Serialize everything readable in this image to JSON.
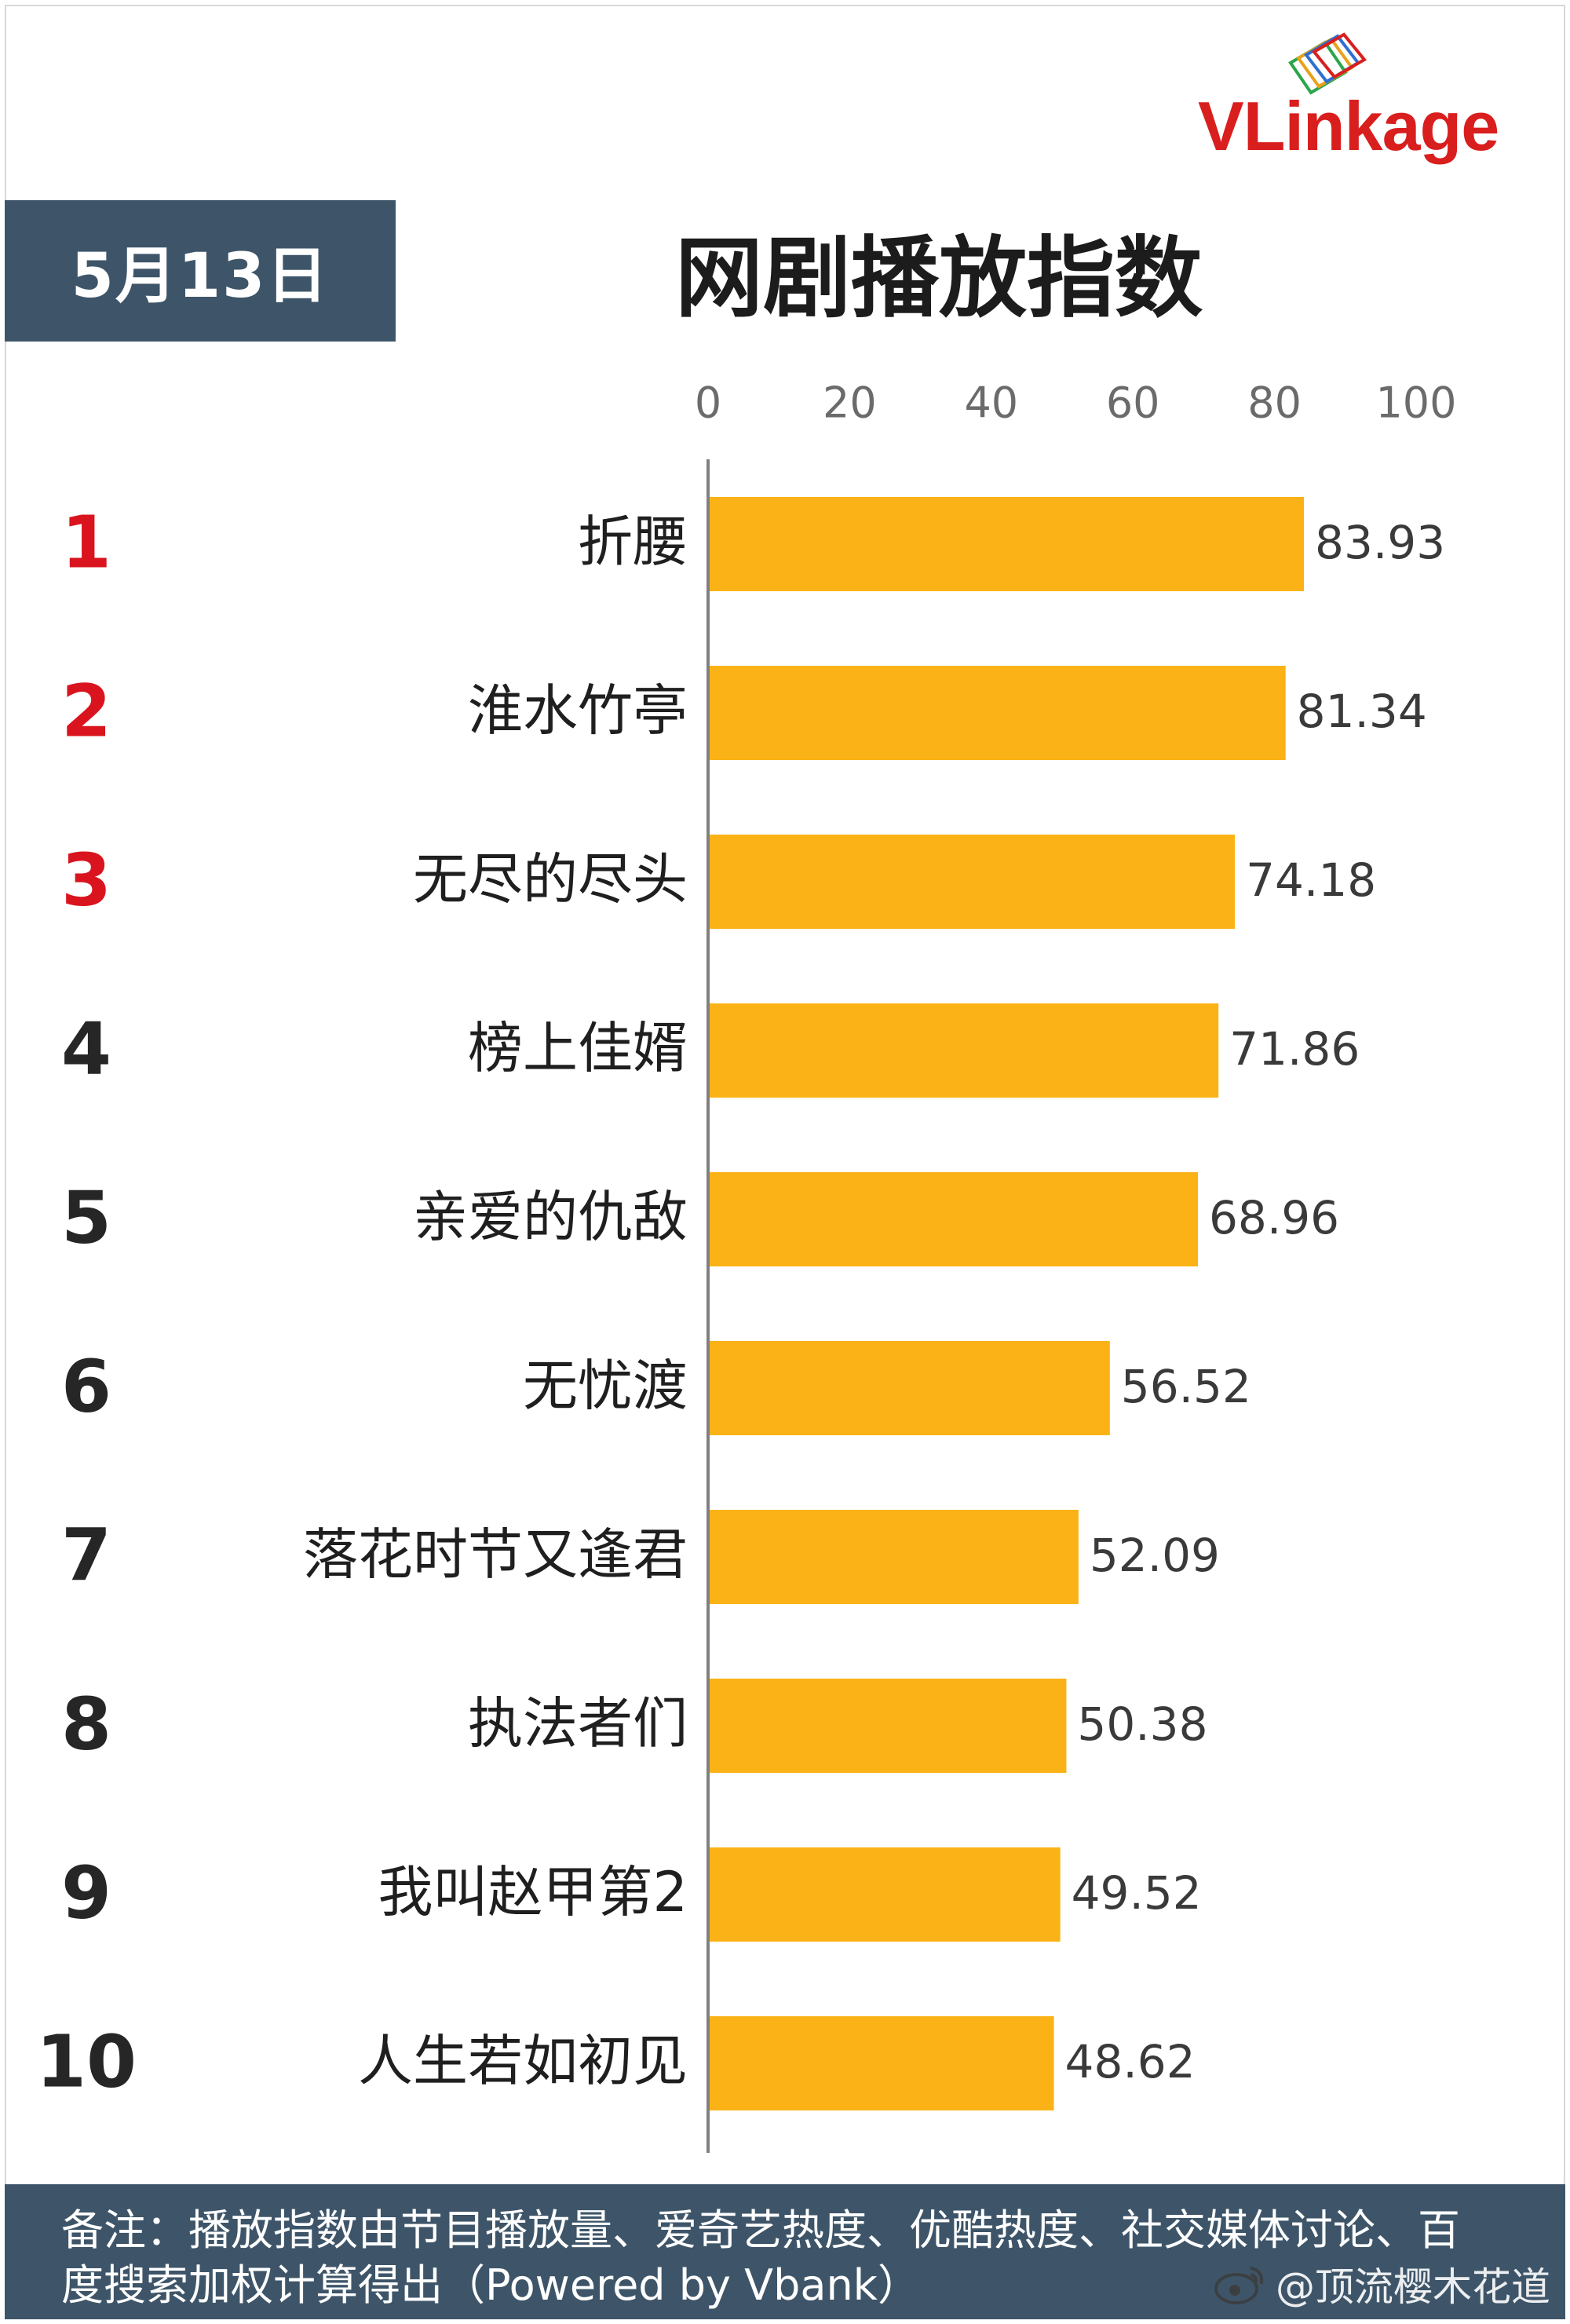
{
  "header": {
    "date": "5月13日",
    "title": "网剧播放指数",
    "logo": "VLinkage"
  },
  "chart_data": {
    "type": "bar",
    "orientation": "horizontal",
    "title": "网剧播放指数",
    "xlim": [
      0,
      100
    ],
    "xticks": [
      0,
      20,
      40,
      60,
      80,
      100
    ],
    "grid": false,
    "ranks": [
      "1",
      "2",
      "3",
      "4",
      "5",
      "6",
      "7",
      "8",
      "9",
      "10"
    ],
    "categories": [
      "折腰",
      "淮水竹亭",
      "无尽的尽头",
      "榜上佳婿",
      "亲爱的仇敌",
      "无忧渡",
      "落花时节又逢君",
      "执法者们",
      "我叫赵甲第2",
      "人生若如初见"
    ],
    "values": [
      83.93,
      81.34,
      74.18,
      71.86,
      68.96,
      56.52,
      52.09,
      50.38,
      49.52,
      48.62
    ],
    "value_labels": [
      "83.93",
      "81.34",
      "74.18",
      "71.86",
      "68.96",
      "56.52",
      "52.09",
      "50.38",
      "49.52",
      "48.62"
    ],
    "colors": {
      "bar": "#fbb216",
      "rank_top": "#d9141e",
      "rank_other": "#262626",
      "axis": "#808080",
      "tick_label": "#6b6b6b",
      "value_label": "#3a3a3a",
      "category_label": "#1f1f1f"
    },
    "top_rank_count": 3
  },
  "footer": {
    "note": "备注：播放指数由节目播放量、爱奇艺热度、优酷热度、社交媒体讨论、百度搜索加权计算得出（Powered by Vbank）",
    "watermark": "@顶流樱木花道"
  },
  "icons": [
    "weibo-icon"
  ]
}
